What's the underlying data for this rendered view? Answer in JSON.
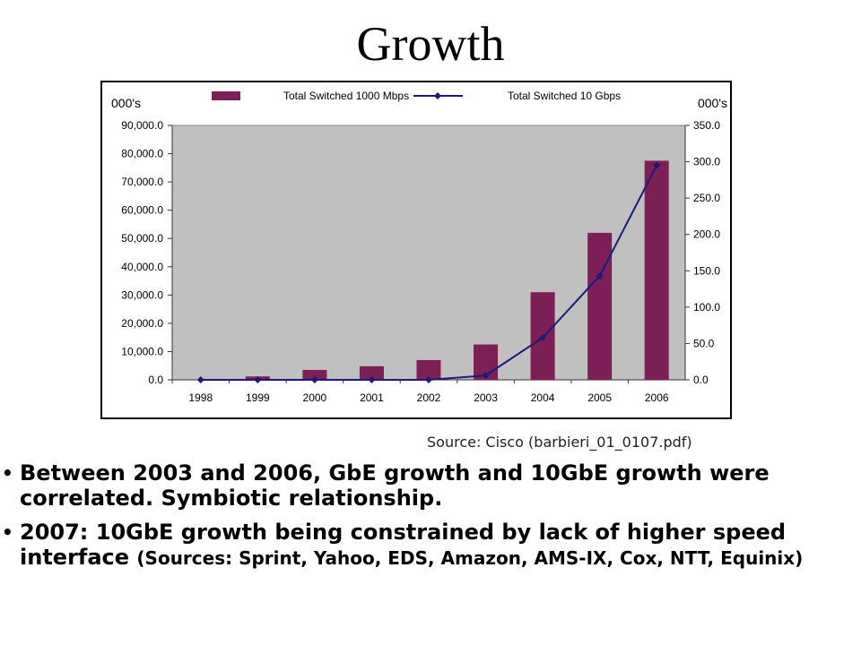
{
  "title": "Growth",
  "source": "Source: Cisco (barbieri_01_0107.pdf)",
  "bullets": [
    {
      "text": "Between 2003 and 2006, GbE growth and 10GbE growth were correlated.  Symbiotic relationship.",
      "small": ""
    },
    {
      "text": "2007:  10GbE growth being constrained by lack of higher speed interface ",
      "small": "(Sources: Sprint, Yahoo, EDS, Amazon, AMS-IX, Cox, NTT, Equinix)"
    }
  ],
  "colors": {
    "bar": "#7b1f56",
    "line": "#1a1a7a",
    "plot_bg": "#c0c0c0"
  },
  "chart_data": {
    "type": "bar+line",
    "categories": [
      "1998",
      "1999",
      "2000",
      "2001",
      "2002",
      "2003",
      "2004",
      "2005",
      "2006"
    ],
    "series": [
      {
        "name": "Total Switched 1000 Mbps",
        "type": "bar",
        "axis": "left",
        "values": [
          0,
          1200,
          3500,
          4800,
          7000,
          12500,
          31000,
          52000,
          77500
        ]
      },
      {
        "name": "Total Switched 10 Gbps",
        "type": "line",
        "axis": "right",
        "values": [
          0,
          0,
          0,
          0,
          0,
          6,
          58,
          143,
          295
        ]
      }
    ],
    "y_left": {
      "label": "000's",
      "min": 0,
      "max": 90000,
      "ticks": [
        "0.0",
        "10,000.0",
        "20,000.0",
        "30,000.0",
        "40,000.0",
        "50,000.0",
        "60,000.0",
        "70,000.0",
        "80,000.0",
        "90,000.0"
      ]
    },
    "y_right": {
      "label": "000's",
      "min": 0,
      "max": 350,
      "ticks": [
        "0.0",
        "50.0",
        "100.0",
        "150.0",
        "200.0",
        "250.0",
        "300.0",
        "350.0"
      ]
    },
    "grid": false,
    "legend": "top"
  }
}
